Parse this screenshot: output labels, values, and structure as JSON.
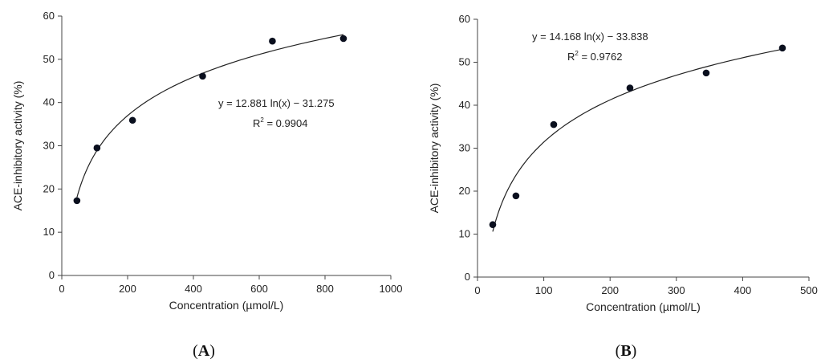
{
  "chart_data": [
    {
      "type": "scatter",
      "panel_label": "A",
      "xlabel": "Concentration (µmol/L)",
      "ylabel": "ACE-inhibitory activity (%)",
      "xlim": [
        0,
        1000
      ],
      "ylim": [
        0,
        60
      ],
      "xticks": [
        0,
        200,
        400,
        600,
        800,
        1000
      ],
      "yticks": [
        0,
        10,
        20,
        30,
        40,
        50,
        60
      ],
      "x": [
        46,
        107,
        215,
        428,
        640,
        856
      ],
      "y": [
        17.3,
        29.5,
        35.9,
        46.1,
        54.2,
        54.8
      ],
      "trendline": {
        "type": "logarithmic",
        "slope": 12.881,
        "intercept": -31.275,
        "equation": "y = 12.881 ln(x) − 31.275",
        "r2_prefix": "R",
        "r2_value": " = 0.9904"
      }
    },
    {
      "type": "scatter",
      "panel_label": "B",
      "xlabel": "Concentration (µmol/L)",
      "ylabel": "ACE-inhibitory activity (%)",
      "xlim": [
        0,
        500
      ],
      "ylim": [
        0,
        60
      ],
      "xticks": [
        0,
        100,
        200,
        300,
        400,
        500
      ],
      "yticks": [
        0,
        10,
        20,
        30,
        40,
        50,
        60
      ],
      "x": [
        23,
        58,
        115,
        230,
        345,
        460
      ],
      "y": [
        12.2,
        18.9,
        35.5,
        44.0,
        47.5,
        53.3
      ],
      "trendline": {
        "type": "logarithmic",
        "slope": 14.168,
        "intercept": -33.838,
        "equation": "y = 14.168 ln(x) − 33.838",
        "r2_prefix": "R",
        "r2_value": " = 0.9762"
      }
    }
  ]
}
